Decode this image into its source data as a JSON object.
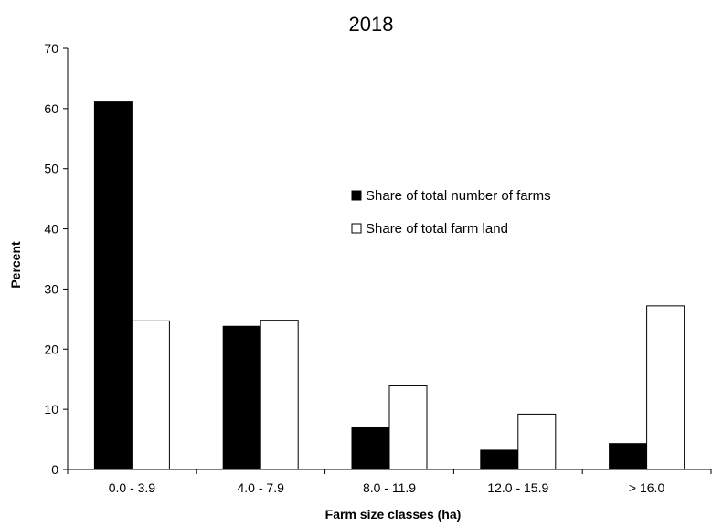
{
  "chart_data": {
    "type": "bar",
    "title": "2018",
    "xlabel": "Farm size classes (ha)",
    "ylabel": "Percent",
    "categories": [
      "0.0 - 3.9",
      "4.0 - 7.9",
      "8.0 - 11.9",
      "12.0 - 15.9",
      "> 16.0"
    ],
    "series": [
      {
        "name": "Share of total number of farms",
        "color": "#000000",
        "values": [
          61.1,
          23.8,
          7.0,
          3.2,
          4.3
        ]
      },
      {
        "name": "Share of total farm land",
        "color": "#ffffff",
        "values": [
          24.7,
          24.8,
          13.9,
          9.2,
          27.2
        ]
      }
    ],
    "ylim": [
      0,
      70
    ],
    "yticks": [
      0,
      10,
      20,
      30,
      40,
      50,
      60,
      70
    ],
    "grid": false,
    "legend_position": "right-center"
  }
}
